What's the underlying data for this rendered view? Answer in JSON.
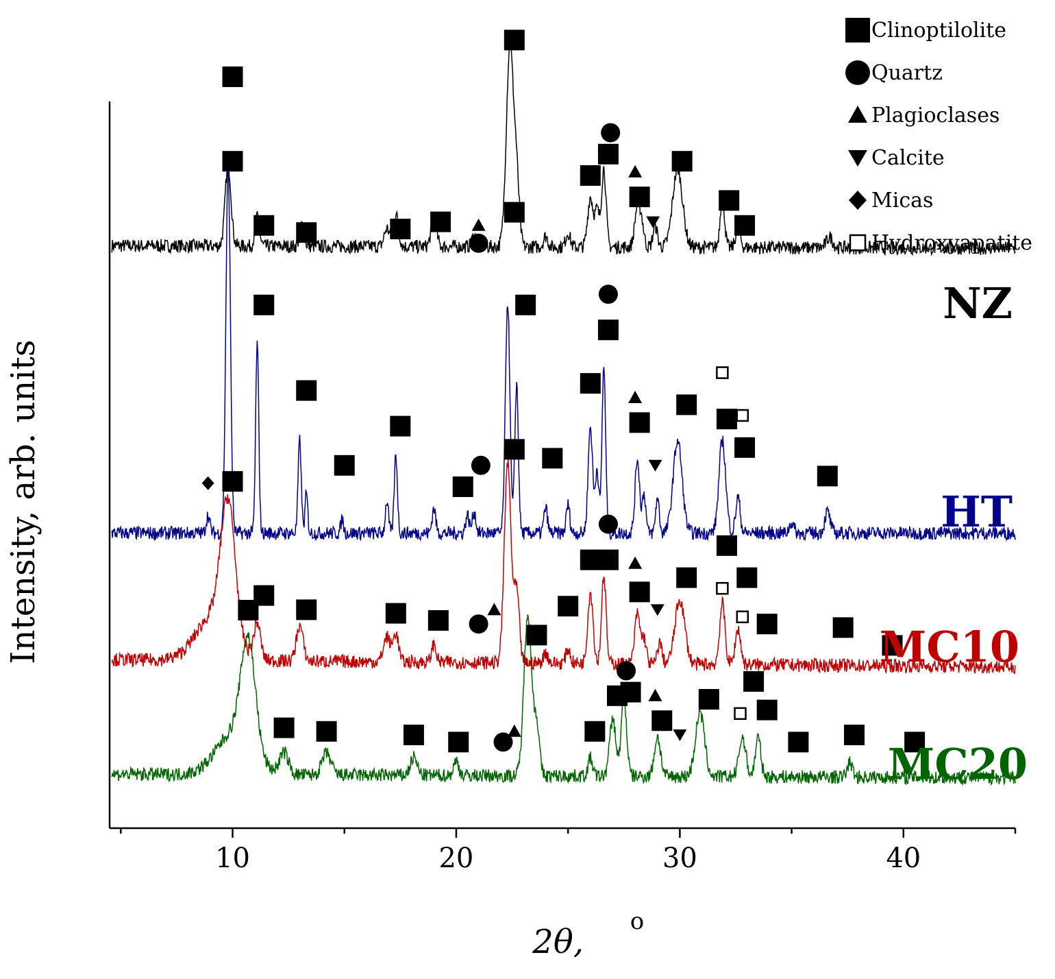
{
  "chart_data": {
    "type": "line",
    "xlabel_main": "2θ,",
    "xlabel_unit": "o",
    "ylabel": "Intensity, arb. units",
    "xlim": [
      4.5,
      45
    ],
    "xticks": [
      10,
      20,
      30,
      40
    ],
    "xtick_labels": [
      "10",
      "20",
      "30",
      "40"
    ],
    "y_ticks_shown": false,
    "grid": false,
    "legend": {
      "placement": "top-right",
      "entries": [
        {
          "marker": "square-filled",
          "label": "Clinoptilolite"
        },
        {
          "marker": "circle-filled",
          "label": "Quartz"
        },
        {
          "marker": "triangle-up-filled",
          "label": "Plagioclases"
        },
        {
          "marker": "triangle-down-filled",
          "label": "Calcite"
        },
        {
          "marker": "diamond-filled",
          "label": "Micas"
        },
        {
          "marker": "square-open",
          "label": "Hydroxyapatite"
        }
      ]
    },
    "series": [
      {
        "name": "NZ",
        "color": "#000000",
        "baseline": 0.53,
        "baseline_end": 0.46,
        "peaks": [
          [
            9.8,
            2.3,
            0.13
          ],
          [
            11.1,
            0.8,
            0.1
          ],
          [
            13.1,
            0.6,
            0.1
          ],
          [
            16.9,
            0.5,
            0.12
          ],
          [
            17.3,
            0.9,
            0.12
          ],
          [
            19.0,
            0.8,
            0.12
          ],
          [
            20.8,
            0.3,
            0.1
          ],
          [
            22.4,
            5.6,
            0.16
          ],
          [
            22.7,
            1.8,
            0.12
          ],
          [
            24.0,
            0.3,
            0.1
          ],
          [
            25.0,
            0.4,
            0.1
          ],
          [
            26.0,
            1.4,
            0.12
          ],
          [
            26.3,
            1.0,
            0.1
          ],
          [
            26.6,
            2.2,
            0.1
          ],
          [
            28.1,
            1.1,
            0.12
          ],
          [
            28.3,
            0.6,
            0.1
          ],
          [
            28.9,
            0.6,
            0.1
          ],
          [
            29.9,
            2.2,
            0.22
          ],
          [
            31.9,
            1.4,
            0.1
          ],
          [
            32.6,
            0.6,
            0.1
          ],
          [
            36.7,
            0.3,
            0.14
          ]
        ],
        "markers": [
          {
            "shape": "square",
            "x": 10.0,
            "y": 2.9
          },
          {
            "shape": "square",
            "x": 11.4,
            "y": 1.1
          },
          {
            "shape": "square",
            "x": 13.3,
            "y": 0.9
          },
          {
            "shape": "square",
            "x": 17.5,
            "y": 1.0
          },
          {
            "shape": "square",
            "x": 19.3,
            "y": 1.2
          },
          {
            "shape": "triangle-up",
            "x": 21.0,
            "y": 1.1
          },
          {
            "shape": "circle",
            "x": 21.0,
            "y": 0.6
          },
          {
            "shape": "square",
            "x": 22.6,
            "y": 6.3
          },
          {
            "shape": "square",
            "x": 26.0,
            "y": 2.5
          },
          {
            "shape": "square",
            "x": 26.8,
            "y": 3.1
          },
          {
            "shape": "circle",
            "x": 26.9,
            "y": 3.7
          },
          {
            "shape": "triangle-up",
            "x": 28.0,
            "y": 2.6
          },
          {
            "shape": "square",
            "x": 28.2,
            "y": 1.9
          },
          {
            "shape": "triangle-down",
            "x": 28.8,
            "y": 1.2
          },
          {
            "shape": "square",
            "x": 30.1,
            "y": 2.9
          },
          {
            "shape": "square",
            "x": 32.2,
            "y": 1.8
          },
          {
            "shape": "square",
            "x": 32.9,
            "y": 1.1
          }
        ]
      },
      {
        "name": "HT",
        "color": "#00008b",
        "baseline": 0.2,
        "baseline_end": 0.2,
        "peaks": [
          [
            8.9,
            0.5,
            0.08
          ],
          [
            9.8,
            10.3,
            0.1
          ],
          [
            11.1,
            5.3,
            0.07
          ],
          [
            13.0,
            2.6,
            0.07
          ],
          [
            13.3,
            1.1,
            0.06
          ],
          [
            14.9,
            0.4,
            0.06
          ],
          [
            16.9,
            0.9,
            0.07
          ],
          [
            17.3,
            2.2,
            0.07
          ],
          [
            19.0,
            0.7,
            0.08
          ],
          [
            20.5,
            0.5,
            0.08
          ],
          [
            20.8,
            0.6,
            0.08
          ],
          [
            22.3,
            6.5,
            0.1
          ],
          [
            22.7,
            4.2,
            0.08
          ],
          [
            24.0,
            0.7,
            0.08
          ],
          [
            25.0,
            0.8,
            0.08
          ],
          [
            26.0,
            3.0,
            0.1
          ],
          [
            26.3,
            1.8,
            0.08
          ],
          [
            26.6,
            4.7,
            0.08
          ],
          [
            28.1,
            2.1,
            0.1
          ],
          [
            28.4,
            1.1,
            0.08
          ],
          [
            29.0,
            1.0,
            0.08
          ],
          [
            29.9,
            2.6,
            0.2
          ],
          [
            31.9,
            2.6,
            0.15
          ],
          [
            32.6,
            1.0,
            0.1
          ],
          [
            35.0,
            0.3,
            0.1
          ],
          [
            36.6,
            0.6,
            0.12
          ]
        ],
        "markers": [
          {
            "shape": "diamond",
            "x": 8.9,
            "y": 1.6
          },
          {
            "shape": "square",
            "x": 10.0,
            "y": 13.0
          },
          {
            "shape": "square",
            "x": 11.4,
            "y": 6.6
          },
          {
            "shape": "square",
            "x": 13.3,
            "y": 4.2
          },
          {
            "shape": "square",
            "x": 15.0,
            "y": 2.1
          },
          {
            "shape": "square",
            "x": 17.5,
            "y": 3.2
          },
          {
            "shape": "square",
            "x": 20.3,
            "y": 1.5
          },
          {
            "shape": "circle",
            "x": 21.1,
            "y": 2.1
          },
          {
            "shape": "square",
            "x": 22.6,
            "y": 9.2
          },
          {
            "shape": "square",
            "x": 23.1,
            "y": 6.6
          },
          {
            "shape": "square",
            "x": 24.3,
            "y": 2.3
          },
          {
            "shape": "circle",
            "x": 26.8,
            "y": 6.9
          },
          {
            "shape": "square",
            "x": 26.8,
            "y": 5.9
          },
          {
            "shape": "square",
            "x": 26.0,
            "y": 4.4
          },
          {
            "shape": "triangle-up",
            "x": 28.0,
            "y": 4.0
          },
          {
            "shape": "square",
            "x": 28.2,
            "y": 3.3
          },
          {
            "shape": "triangle-down",
            "x": 28.9,
            "y": 2.1
          },
          {
            "shape": "square",
            "x": 30.3,
            "y": 3.8
          },
          {
            "shape": "square-open",
            "x": 31.9,
            "y": 4.7
          },
          {
            "shape": "square",
            "x": 32.1,
            "y": 3.4
          },
          {
            "shape": "square-open",
            "x": 32.8,
            "y": 3.5
          },
          {
            "shape": "square",
            "x": 32.9,
            "y": 2.6
          },
          {
            "shape": "square",
            "x": 36.6,
            "y": 1.8
          }
        ]
      },
      {
        "name": "MC10",
        "color": "#c00000",
        "baseline": 0.4,
        "baseline_end": 0.2,
        "peaks": [
          [
            9.2,
            1.3,
            0.8
          ],
          [
            9.8,
            3.6,
            0.32
          ],
          [
            11.1,
            1.0,
            0.15
          ],
          [
            13.0,
            1.0,
            0.15
          ],
          [
            16.9,
            0.7,
            0.15
          ],
          [
            17.3,
            0.8,
            0.12
          ],
          [
            19.0,
            0.5,
            0.1
          ],
          [
            22.3,
            5.6,
            0.15
          ],
          [
            22.7,
            2.0,
            0.12
          ],
          [
            24.0,
            0.3,
            0.1
          ],
          [
            25.0,
            0.4,
            0.1
          ],
          [
            26.0,
            2.0,
            0.12
          ],
          [
            26.6,
            2.5,
            0.1
          ],
          [
            28.1,
            1.4,
            0.12
          ],
          [
            28.4,
            0.7,
            0.1
          ],
          [
            29.1,
            0.6,
            0.1
          ],
          [
            30.0,
            1.8,
            0.22
          ],
          [
            31.9,
            1.7,
            0.12
          ],
          [
            32.6,
            1.0,
            0.12
          ]
        ],
        "markers": [
          {
            "shape": "square",
            "x": 10.0,
            "y": 5.4
          },
          {
            "shape": "square",
            "x": 11.4,
            "y": 2.2
          },
          {
            "shape": "square",
            "x": 13.3,
            "y": 1.8
          },
          {
            "shape": "square",
            "x": 17.3,
            "y": 1.7
          },
          {
            "shape": "square",
            "x": 19.2,
            "y": 1.5
          },
          {
            "shape": "circle",
            "x": 21.0,
            "y": 1.4
          },
          {
            "shape": "triangle-up",
            "x": 21.7,
            "y": 1.8
          },
          {
            "shape": "square",
            "x": 22.6,
            "y": 6.3
          },
          {
            "shape": "square",
            "x": 25.0,
            "y": 1.9
          },
          {
            "shape": "circle",
            "x": 26.8,
            "y": 4.2
          },
          {
            "shape": "square",
            "x": 26.0,
            "y": 3.2
          },
          {
            "shape": "square",
            "x": 26.8,
            "y": 3.2
          },
          {
            "shape": "triangle-up",
            "x": 28.0,
            "y": 3.1
          },
          {
            "shape": "square",
            "x": 28.2,
            "y": 2.3
          },
          {
            "shape": "triangle-down",
            "x": 29.0,
            "y": 1.8
          },
          {
            "shape": "square",
            "x": 30.3,
            "y": 2.7
          },
          {
            "shape": "square",
            "x": 32.1,
            "y": 3.6
          },
          {
            "shape": "square-open",
            "x": 31.9,
            "y": 2.4
          },
          {
            "shape": "square",
            "x": 33.0,
            "y": 2.7
          },
          {
            "shape": "square-open",
            "x": 32.8,
            "y": 1.6
          },
          {
            "shape": "square",
            "x": 33.9,
            "y": 1.4
          },
          {
            "shape": "square",
            "x": 37.3,
            "y": 1.3
          },
          {
            "shape": "square",
            "x": 39.5,
            "y": 0.8
          }
        ]
      },
      {
        "name": "MC20",
        "color": "#006400",
        "baseline": 0.4,
        "baseline_end": 0.3,
        "peaks": [
          [
            10.1,
            1.2,
            0.8
          ],
          [
            10.7,
            3.0,
            0.32
          ],
          [
            12.3,
            0.6,
            0.2
          ],
          [
            14.2,
            0.6,
            0.2
          ],
          [
            18.1,
            0.5,
            0.15
          ],
          [
            20.0,
            0.4,
            0.12
          ],
          [
            23.2,
            4.6,
            0.17
          ],
          [
            23.6,
            1.4,
            0.12
          ],
          [
            26.0,
            0.5,
            0.1
          ],
          [
            27.0,
            1.6,
            0.14
          ],
          [
            27.5,
            2.2,
            0.12
          ],
          [
            29.0,
            1.1,
            0.14
          ],
          [
            30.9,
            1.8,
            0.2
          ],
          [
            32.8,
            1.1,
            0.15
          ],
          [
            33.5,
            1.1,
            0.12
          ],
          [
            37.6,
            0.4,
            0.12
          ]
        ],
        "markers": [
          {
            "shape": "square",
            "x": 10.7,
            "y": 5.0
          },
          {
            "shape": "square",
            "x": 12.3,
            "y": 1.7
          },
          {
            "shape": "square",
            "x": 14.2,
            "y": 1.6
          },
          {
            "shape": "square",
            "x": 18.1,
            "y": 1.5
          },
          {
            "shape": "square",
            "x": 20.1,
            "y": 1.3
          },
          {
            "shape": "circle",
            "x": 22.1,
            "y": 1.3
          },
          {
            "shape": "triangle-up",
            "x": 22.6,
            "y": 1.6
          },
          {
            "shape": "square",
            "x": 23.6,
            "y": 4.3
          },
          {
            "shape": "square",
            "x": 26.2,
            "y": 1.6
          },
          {
            "shape": "circle",
            "x": 27.6,
            "y": 3.3
          },
          {
            "shape": "square",
            "x": 27.2,
            "y": 2.6
          },
          {
            "shape": "square",
            "x": 27.8,
            "y": 2.7
          },
          {
            "shape": "triangle-up",
            "x": 28.9,
            "y": 2.6
          },
          {
            "shape": "square",
            "x": 29.2,
            "y": 1.9
          },
          {
            "shape": "triangle-down",
            "x": 30.0,
            "y": 1.5
          },
          {
            "shape": "square",
            "x": 31.3,
            "y": 2.5
          },
          {
            "shape": "square",
            "x": 33.3,
            "y": 3.0
          },
          {
            "shape": "square-open",
            "x": 32.7,
            "y": 2.1
          },
          {
            "shape": "square",
            "x": 33.9,
            "y": 2.2
          },
          {
            "shape": "square",
            "x": 35.3,
            "y": 1.3
          },
          {
            "shape": "square",
            "x": 37.8,
            "y": 1.5
          },
          {
            "shape": "square",
            "x": 40.5,
            "y": 1.3
          }
        ]
      }
    ]
  }
}
